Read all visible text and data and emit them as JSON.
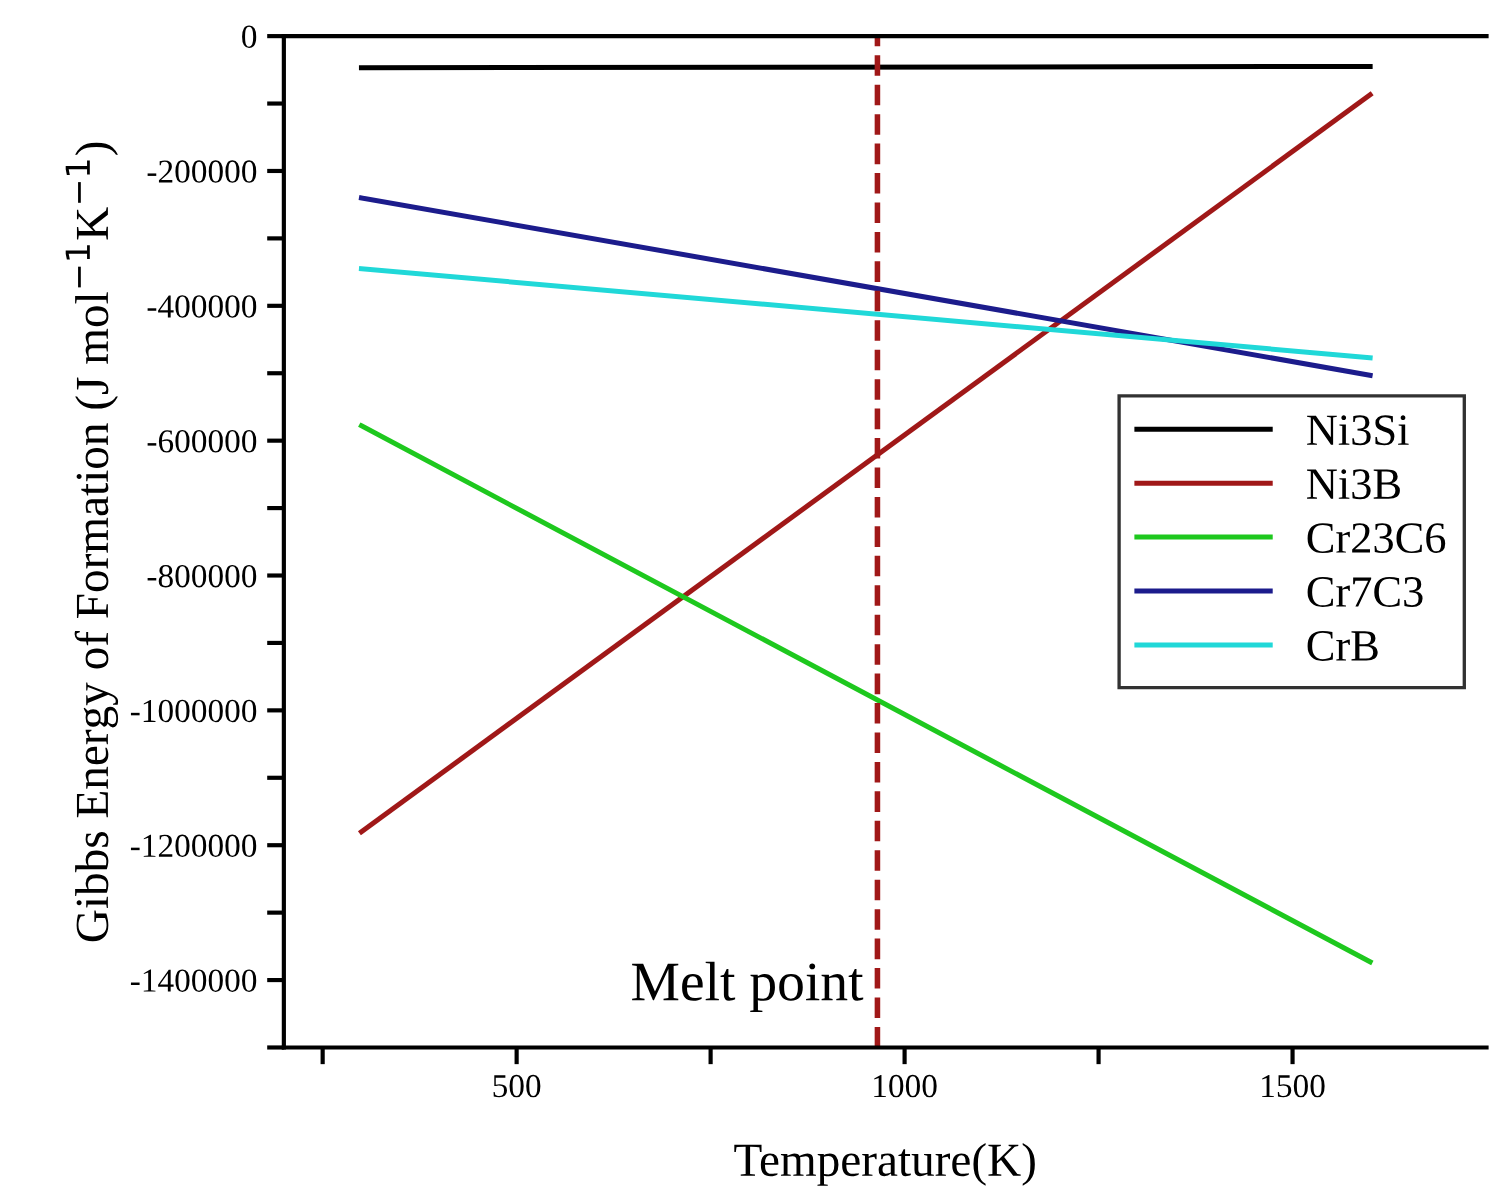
{
  "chart_data": {
    "type": "line",
    "xlabel": "Temperature(K)",
    "ylabel": "Gibbs Energy of Formation (J mol$^{−1}$K$^{−1}$)",
    "x": [
      300,
      1600
    ],
    "series": [
      {
        "name": "Ni3Si",
        "color": "#000000",
        "values": [
          -47000,
          -45000
        ]
      },
      {
        "name": "Ni3B",
        "color": "#a01818",
        "values": [
          -1180000,
          -87000
        ]
      },
      {
        "name": "Cr23C6",
        "color": "#1ec81e",
        "values": [
          -578000,
          -1373000
        ]
      },
      {
        "name": "Cr7C3",
        "color": "#1c1c8c",
        "values": [
          -240000,
          -503000
        ]
      },
      {
        "name": "CrB",
        "color": "#20d8d8",
        "values": [
          -345000,
          -477000
        ]
      }
    ],
    "xlim": [
      200,
      1750
    ],
    "ylim": [
      -1500000,
      0
    ],
    "xticks": [
      {
        "value": 250,
        "label": null
      },
      500,
      {
        "value": 750,
        "label": null
      },
      1000,
      {
        "value": 1250,
        "label": null
      },
      1500
    ],
    "yticks": [
      {
        "value": -1500000,
        "label": null
      },
      -1400000,
      {
        "value": -1300000,
        "label": null
      },
      -1200000,
      {
        "value": -1100000,
        "label": null
      },
      -1000000,
      {
        "value": -900000,
        "label": null
      },
      -800000,
      {
        "value": -700000,
        "label": null
      },
      -600000,
      {
        "value": -500000,
        "label": null
      },
      -400000,
      {
        "value": -300000,
        "label": null
      },
      -200000,
      {
        "value": -100000,
        "label": null
      },
      0
    ],
    "ref_lines": [
      {
        "axis": "x",
        "value": 965,
        "label": "Melt point",
        "color": "#a01818",
        "line_style": "dashed"
      }
    ],
    "legend": "center right",
    "grid": false,
    "marker": "none",
    "line_style": "solid"
  }
}
